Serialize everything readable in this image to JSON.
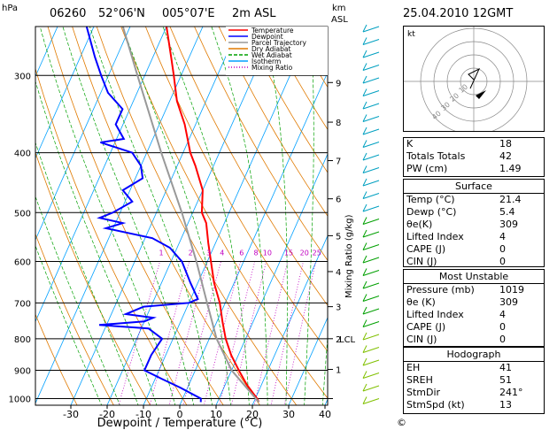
{
  "header": {
    "hpa_label": "hPa",
    "station_id": "06260",
    "lat": "52°06'N",
    "lon": "005°07'E",
    "elev": "2m  ASL",
    "km_label": "km",
    "asl_label": "ASL",
    "datetime": "25.04.2010  12GMT"
  },
  "axes": {
    "xlabel": "Dewpoint / Temperature (°C)",
    "x_ticks": [
      -30,
      -20,
      -10,
      0,
      10,
      20,
      30,
      40
    ],
    "x_range": [
      -35,
      40
    ],
    "pressure_levels": [
      300,
      400,
      500,
      600,
      700,
      800,
      900,
      1000
    ],
    "p_range": [
      1025,
      250
    ],
    "height_ticks": [
      {
        "p": 1000,
        "km": "1"
      },
      {
        "p": 897,
        "km": "1"
      },
      {
        "p": 800,
        "km": "2"
      },
      {
        "p": 710,
        "km": "3"
      },
      {
        "p": 623,
        "km": "4"
      },
      {
        "p": 545,
        "km": "5"
      },
      {
        "p": 475,
        "km": "6"
      },
      {
        "p": 412,
        "km": "7"
      },
      {
        "p": 357,
        "km": "8"
      },
      {
        "p": 308,
        "km": "9"
      }
    ],
    "lcl": {
      "p": 800,
      "label": "LCL"
    },
    "mixing_ratio_label": "Mixing Ratio (g/kg)",
    "mixing_ratio_values": [
      "1",
      "2",
      "3",
      "4",
      "6",
      "8",
      "10",
      "15",
      "20",
      "25"
    ]
  },
  "legend": {
    "items": [
      {
        "label": "Temperature",
        "color": "#ff0000"
      },
      {
        "label": "Dewpoint",
        "color": "#0000ff"
      },
      {
        "label": "Parcel Trajectory",
        "color": "#999999"
      },
      {
        "label": "Dry Adiabat",
        "color": "#e07a00"
      },
      {
        "label": "Wet Adiabat",
        "color": "#00a000"
      },
      {
        "label": "Isotherm",
        "color": "#00a0ff"
      },
      {
        "label": "Mixing Ratio",
        "color": "#c000c0"
      }
    ]
  },
  "chart_data": {
    "type": "line",
    "skewt": true,
    "series": [
      {
        "name": "Temperature",
        "color": "#ff0000",
        "points": [
          [
            1013,
            21.4
          ],
          [
            1000,
            20.5
          ],
          [
            950,
            16
          ],
          [
            900,
            12
          ],
          [
            850,
            8
          ],
          [
            800,
            4.5
          ],
          [
            750,
            1.5
          ],
          [
            700,
            -1.5
          ],
          [
            650,
            -5.5
          ],
          [
            600,
            -9
          ],
          [
            560,
            -12
          ],
          [
            520,
            -15
          ],
          [
            500,
            -17.5
          ],
          [
            460,
            -20
          ],
          [
            420,
            -25
          ],
          [
            400,
            -28
          ],
          [
            360,
            -33
          ],
          [
            330,
            -38
          ],
          [
            300,
            -42
          ],
          [
            280,
            -45
          ],
          [
            250,
            -50
          ]
        ]
      },
      {
        "name": "Dewpoint",
        "color": "#0000ff",
        "points": [
          [
            1013,
            5.4
          ],
          [
            1000,
            5
          ],
          [
            960,
            -2
          ],
          [
            930,
            -8
          ],
          [
            900,
            -14
          ],
          [
            850,
            -14
          ],
          [
            800,
            -13
          ],
          [
            770,
            -18
          ],
          [
            760,
            -32
          ],
          [
            750,
            -20
          ],
          [
            740,
            -18
          ],
          [
            730,
            -26
          ],
          [
            710,
            -22
          ],
          [
            700,
            -10
          ],
          [
            690,
            -8
          ],
          [
            650,
            -12
          ],
          [
            600,
            -17
          ],
          [
            570,
            -22
          ],
          [
            550,
            -28
          ],
          [
            530,
            -42
          ],
          [
            520,
            -38
          ],
          [
            510,
            -45
          ],
          [
            500,
            -42
          ],
          [
            480,
            -38
          ],
          [
            460,
            -42
          ],
          [
            440,
            -38
          ],
          [
            420,
            -40
          ],
          [
            400,
            -44
          ],
          [
            385,
            -54
          ],
          [
            380,
            -48
          ],
          [
            360,
            -52
          ],
          [
            340,
            -52
          ],
          [
            320,
            -58
          ],
          [
            300,
            -62
          ],
          [
            280,
            -66
          ],
          [
            250,
            -72
          ]
        ]
      },
      {
        "name": "Parcel Trajectory",
        "color": "#999999",
        "points": [
          [
            1013,
            21.4
          ],
          [
            900,
            10
          ],
          [
            800,
            2
          ],
          [
            700,
            -5
          ],
          [
            600,
            -13
          ],
          [
            500,
            -23
          ],
          [
            400,
            -36
          ],
          [
            300,
            -52
          ],
          [
            250,
            -62
          ]
        ]
      }
    ]
  },
  "hodograph": {
    "unit": "kt",
    "ring_labels": [
      "10",
      "20",
      "30",
      "40"
    ]
  },
  "indices_table": [
    {
      "label": "K",
      "value": "18"
    },
    {
      "label": "Totals Totals",
      "value": "42"
    },
    {
      "label": "PW (cm)",
      "value": "1.49"
    }
  ],
  "surface": {
    "title": "Surface",
    "rows": [
      {
        "label": "Temp (°C)",
        "value": "21.4"
      },
      {
        "label": "Dewp (°C)",
        "value": "5.4"
      },
      {
        "label": "θe(K)",
        "value": "309"
      },
      {
        "label": "Lifted Index",
        "value": "4"
      },
      {
        "label": "CAPE (J)",
        "value": "0"
      },
      {
        "label": "CIN (J)",
        "value": "0"
      }
    ]
  },
  "most_unstable": {
    "title": "Most Unstable",
    "rows": [
      {
        "label": "Pressure (mb)",
        "value": "1019"
      },
      {
        "label": "θe (K)",
        "value": "309"
      },
      {
        "label": "Lifted Index",
        "value": "4"
      },
      {
        "label": "CAPE (J)",
        "value": "0"
      },
      {
        "label": "CIN (J)",
        "value": "0"
      }
    ]
  },
  "hodograph_table": {
    "title": "Hodograph",
    "rows": [
      {
        "label": "EH",
        "value": "41"
      },
      {
        "label": "SREH",
        "value": "51"
      },
      {
        "label": "StmDir",
        "value": "241°"
      },
      {
        "label": "StmSpd (kt)",
        "value": "13"
      }
    ]
  },
  "copyright": "©"
}
